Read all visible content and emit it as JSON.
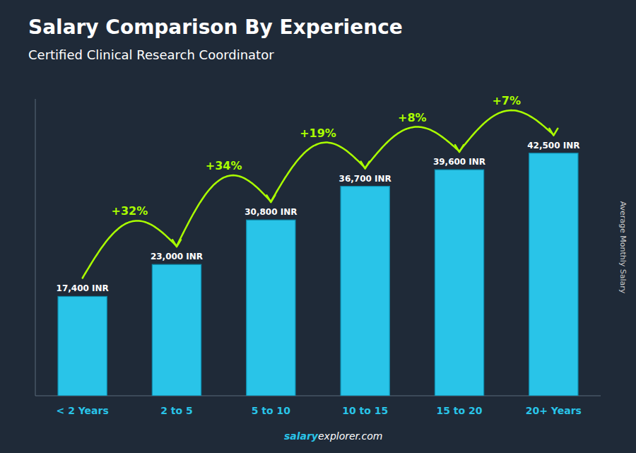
{
  "chart_data": {
    "type": "bar",
    "title": "Salary Comparison By Experience",
    "subtitle": "Certified Clinical Research Coordinator",
    "ylabel": "Average Monthly Salary",
    "categories": [
      "< 2 Years",
      "2 to 5",
      "5 to 10",
      "10 to 15",
      "15 to 20",
      "20+ Years"
    ],
    "values": [
      17400,
      23000,
      30800,
      36700,
      39600,
      42500
    ],
    "value_labels": [
      "17,400 INR",
      "23,000 INR",
      "30,800 INR",
      "36,700 INR",
      "39,600 INR",
      "42,500 INR"
    ],
    "data_labels": true,
    "color": "#29c4e8",
    "ylim": [
      0,
      52000
    ],
    "tick_labels": "x",
    "grid": false,
    "annotations": [
      null,
      {
        "text": "+32%",
        "color": "#aaff00"
      },
      {
        "text": "+34%",
        "color": "#aaff00"
      },
      {
        "text": "+19%",
        "color": "#aaff00"
      },
      {
        "text": "+8%",
        "color": "#aaff00"
      },
      {
        "text": "+7%",
        "color": "#aaff00"
      }
    ],
    "footer": [
      {
        "text": "salary",
        "color": "#29c4e8"
      },
      {
        "text": "explorer.com",
        "color": "#ffffff"
      }
    ]
  }
}
